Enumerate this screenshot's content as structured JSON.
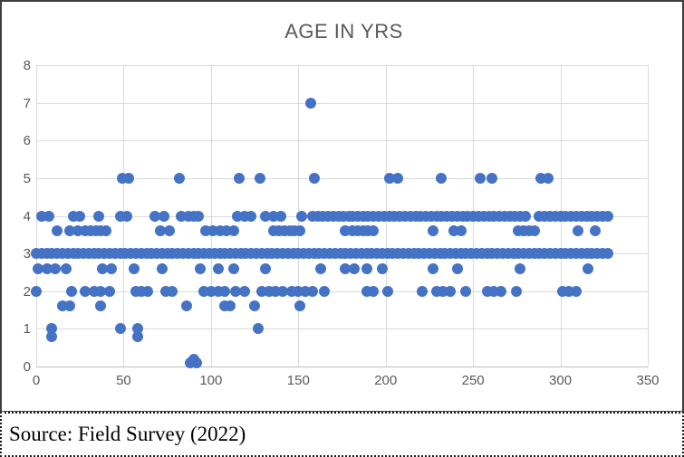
{
  "chart_data": {
    "type": "scatter",
    "title": "AGE IN YRS",
    "xlabel": "",
    "ylabel": "",
    "xlim": [
      0,
      350
    ],
    "ylim": [
      0,
      8
    ],
    "x_ticks": [
      0,
      50,
      100,
      150,
      200,
      250,
      300,
      350
    ],
    "y_ticks": [
      0,
      1,
      2,
      3,
      4,
      5,
      6,
      7,
      8
    ],
    "grid": true,
    "legend_position": "none",
    "marker_color": "#4472C4",
    "series": [
      {
        "name": "Age in years",
        "rows": [
          {
            "y": 7,
            "x": [
              157
            ]
          },
          {
            "y": 5,
            "x": [
              49,
              53,
              82,
              116,
              128,
              159,
              202,
              207,
              232,
              254,
              261,
              289,
              293
            ]
          },
          {
            "y": 4,
            "x": [
              3,
              7,
              21,
              25,
              36,
              48,
              52,
              68,
              73,
              83,
              87,
              90,
              93,
              115,
              119,
              123,
              131,
              136,
              140,
              152,
              158,
              161,
              164,
              167,
              170,
              173,
              176,
              179,
              181,
              184,
              187,
              190,
              193,
              196,
              199,
              202,
              205,
              208,
              211,
              214,
              217,
              220,
              223,
              226,
              229,
              232,
              235,
              238,
              241,
              244,
              247,
              250,
              253,
              256,
              259,
              262,
              265,
              268,
              271,
              274,
              277,
              280,
              288,
              291,
              294,
              297,
              300,
              303,
              306,
              309,
              312,
              315,
              318,
              321,
              324,
              327
            ]
          },
          {
            "y": 3.6,
            "x": [
              12,
              19,
              24,
              28,
              31,
              34,
              37,
              40,
              71,
              76,
              97,
              101,
              105,
              109,
              113,
              136,
              139,
              142,
              145,
              148,
              151,
              177,
              181,
              184,
              187,
              190,
              193,
              227,
              239,
              243,
              276,
              279,
              282,
              285,
              310,
              320
            ]
          },
          {
            "y": 3,
            "x": [
              0,
              3,
              6,
              9,
              12,
              15,
              18,
              21,
              24,
              27,
              30,
              33,
              36,
              39,
              42,
              45,
              48,
              51,
              54,
              57,
              60,
              63,
              66,
              69,
              72,
              75,
              78,
              81,
              84,
              87,
              90,
              93,
              96,
              99,
              102,
              105,
              108,
              111,
              114,
              117,
              120,
              123,
              126,
              129,
              132,
              135,
              138,
              141,
              144,
              147,
              150,
              153,
              156,
              159,
              162,
              165,
              168,
              171,
              174,
              177,
              180,
              183,
              186,
              189,
              192,
              195,
              198,
              201,
              204,
              207,
              210,
              213,
              216,
              219,
              222,
              225,
              228,
              231,
              234,
              237,
              240,
              243,
              246,
              249,
              252,
              255,
              258,
              261,
              264,
              267,
              270,
              273,
              276,
              279,
              282,
              285,
              288,
              291,
              294,
              297,
              300,
              303,
              306,
              309,
              312,
              315,
              318,
              321,
              324,
              327
            ]
          },
          {
            "y": 2.6,
            "x": [
              1,
              6,
              11,
              17,
              38,
              43,
              56,
              72,
              94,
              104,
              113,
              131,
              163,
              177,
              182,
              189,
              198,
              227,
              241,
              277,
              316
            ]
          },
          {
            "y": 2,
            "x": [
              0,
              20,
              28,
              33,
              37,
              42,
              57,
              60,
              64,
              74,
              78,
              96,
              100,
              104,
              108,
              114,
              119,
              129,
              133,
              137,
              141,
              146,
              150,
              154,
              158,
              165,
              189,
              193,
              201,
              221,
              229,
              233,
              237,
              246,
              258,
              262,
              266,
              275,
              301,
              305,
              309
            ]
          },
          {
            "y": 1.6,
            "x": [
              15,
              19,
              37,
              86,
              108,
              111,
              125,
              151
            ]
          },
          {
            "y": 1,
            "x": [
              9,
              48,
              58,
              127
            ]
          },
          {
            "y": 0.8,
            "x": [
              9,
              58
            ]
          },
          {
            "y": 0.2,
            "x": [
              90
            ]
          },
          {
            "y": 0.1,
            "x": [
              88,
              92
            ]
          }
        ]
      }
    ]
  },
  "source_note": "Source: Field Survey (2022)",
  "styles": {
    "title_color": "#595959",
    "tick_label_color": "#595959",
    "gridline_color": "#D9D9D9",
    "axis_line_color": "#BFBFBF",
    "chart_border_color": "#3f3f3f",
    "marker_color": "#4472C4",
    "background": "#ffffff"
  }
}
